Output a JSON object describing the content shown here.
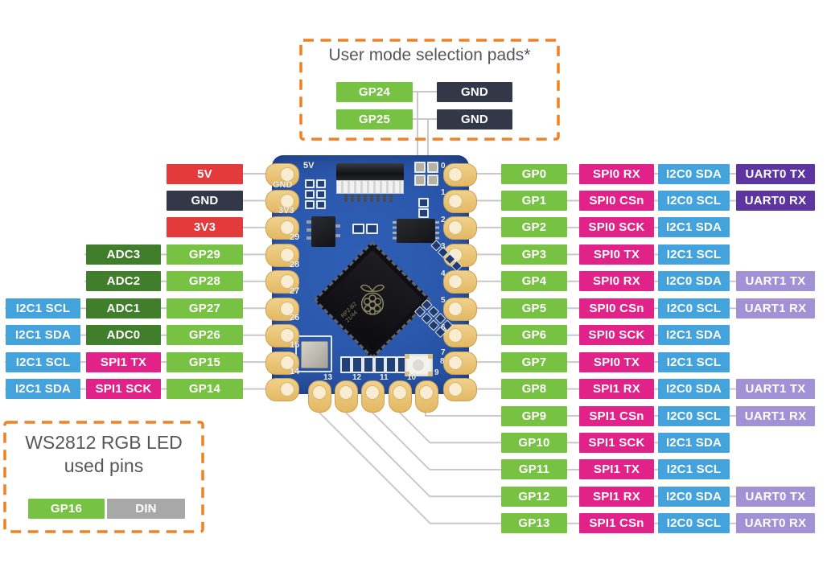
{
  "palette": {
    "gpio": "#77c143",
    "adc": "#417e2b",
    "i2c": "#44a3dc",
    "spi": "#e12288",
    "uart_dark": "#5c35a0",
    "uart_light": "#a291d5",
    "power": "#e43a3c",
    "gnd": "#323848",
    "din": "#a8a8a8",
    "box_border_orange": "#f08021",
    "wire_gray": "#c9c9c9",
    "board_blue": "#2a57ab",
    "pad_gold": "#e9c57a"
  },
  "user_mode_box": {
    "title": "User mode selection pads*",
    "rows": [
      {
        "left": {
          "label": "GP24",
          "type": "gpio"
        },
        "right": {
          "label": "GND",
          "type": "gnd"
        }
      },
      {
        "left": {
          "label": "GP25",
          "type": "gpio"
        },
        "right": {
          "label": "GND",
          "type": "gnd"
        }
      }
    ]
  },
  "ws2812_box": {
    "title_line1": "WS2812 RGB LED",
    "title_line2": "used pins",
    "badges": [
      {
        "label": "GP16",
        "type": "gpio"
      },
      {
        "label": "DIN",
        "type": "din"
      }
    ]
  },
  "left_pins": {
    "rows": [
      {
        "badges": [
          {
            "label": "5V",
            "type": "power"
          }
        ]
      },
      {
        "badges": [
          {
            "label": "GND",
            "type": "gnd"
          }
        ]
      },
      {
        "badges": [
          {
            "label": "3V3",
            "type": "power"
          }
        ]
      },
      {
        "badges": [
          {
            "label": "ADC3",
            "type": "adc"
          },
          {
            "label": "GP29",
            "type": "gpio"
          }
        ]
      },
      {
        "badges": [
          {
            "label": "ADC2",
            "type": "adc"
          },
          {
            "label": "GP28",
            "type": "gpio"
          }
        ]
      },
      {
        "badges": [
          {
            "label": "I2C1 SCL",
            "type": "i2c"
          },
          {
            "label": "ADC1",
            "type": "adc"
          },
          {
            "label": "GP27",
            "type": "gpio"
          }
        ]
      },
      {
        "badges": [
          {
            "label": "I2C1 SDA",
            "type": "i2c"
          },
          {
            "label": "ADC0",
            "type": "adc"
          },
          {
            "label": "GP26",
            "type": "gpio"
          }
        ]
      },
      {
        "badges": [
          {
            "label": "I2C1 SCL",
            "type": "i2c"
          },
          {
            "label": "SPI1 TX",
            "type": "spi"
          },
          {
            "label": "GP15",
            "type": "gpio"
          }
        ]
      },
      {
        "badges": [
          {
            "label": "I2C1 SDA",
            "type": "i2c"
          },
          {
            "label": "SPI1 SCK",
            "type": "spi"
          },
          {
            "label": "GP14",
            "type": "gpio"
          }
        ]
      }
    ]
  },
  "right_pins": {
    "rows": [
      {
        "gpio": "GP0",
        "spi": "SPI0 RX",
        "i2c": "I2C0 SDA",
        "uart": "UART0 TX",
        "uart_style": "dark"
      },
      {
        "gpio": "GP1",
        "spi": "SPI0 CSn",
        "i2c": "I2C0 SCL",
        "uart": "UART0 RX",
        "uart_style": "dark"
      },
      {
        "gpio": "GP2",
        "spi": "SPI0 SCK",
        "i2c": "I2C1 SDA"
      },
      {
        "gpio": "GP3",
        "spi": "SPI0 TX",
        "i2c": "I2C1 SCL"
      },
      {
        "gpio": "GP4",
        "spi": "SPI0 RX",
        "i2c": "I2C0 SDA",
        "uart": "UART1 TX",
        "uart_style": "light"
      },
      {
        "gpio": "GP5",
        "spi": "SPI0 CSn",
        "i2c": "I2C0 SCL",
        "uart": "UART1 RX",
        "uart_style": "light"
      },
      {
        "gpio": "GP6",
        "spi": "SPI0 SCK",
        "i2c": "I2C1 SDA"
      },
      {
        "gpio": "GP7",
        "spi": "SPI0 TX",
        "i2c": "I2C1 SCL"
      },
      {
        "gpio": "GP8",
        "spi": "SPI1 RX",
        "i2c": "I2C0 SDA",
        "uart": "UART1 TX",
        "uart_style": "light"
      },
      {
        "gpio": "GP9",
        "spi": "SPI1 CSn",
        "i2c": "I2C0 SCL",
        "uart": "UART1 RX",
        "uart_style": "light"
      },
      {
        "gpio": "GP10",
        "spi": "SPI1 SCK",
        "i2c": "I2C1 SDA"
      },
      {
        "gpio": "GP11",
        "spi": "SPI1 TX",
        "i2c": "I2C1 SCL"
      },
      {
        "gpio": "GP12",
        "spi": "SPI1 RX",
        "i2c": "I2C0 SDA",
        "uart": "UART0 TX",
        "uart_style": "light"
      },
      {
        "gpio": "GP13",
        "spi": "SPI1 CSn",
        "i2c": "I2C0 SCL",
        "uart": "UART0 RX",
        "uart_style": "light"
      }
    ]
  },
  "board": {
    "silkscreen_left": [
      "5V",
      "GND",
      "3V3",
      "29",
      "28",
      "27",
      "26",
      "15",
      "14"
    ],
    "silkscreen_right": [
      "0",
      "1",
      "2",
      "3",
      "4",
      "5",
      "6",
      "7",
      "8"
    ],
    "silkscreen_bottom": [
      "13",
      "12",
      "11",
      "10",
      "9"
    ],
    "chip_marking_line1": "RP2-B2",
    "chip_marking_line2": "21/44"
  }
}
